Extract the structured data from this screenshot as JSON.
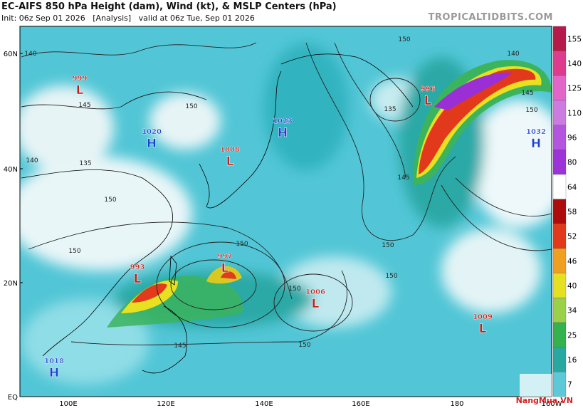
{
  "header": {
    "title": "EC-AIFS 850 hPa Height (dam), Wind (kt), & MSLP Centers (hPa)",
    "subtitle": "Init: 06z Sep 01 2026   [Analysis]   valid at 06z Tue, Sep 01 2026",
    "brand": "TROPICALTIDBITS.COM"
  },
  "map": {
    "lat_labels": [
      "60N",
      "40N",
      "20N",
      "EQ"
    ],
    "lon_labels": [
      "100E",
      "120E",
      "140E",
      "160E",
      "180",
      "160W"
    ],
    "centers": [
      {
        "kind": "L",
        "pressure": "999"
      },
      {
        "kind": "H",
        "pressure": "1020"
      },
      {
        "kind": "L",
        "pressure": "1008"
      },
      {
        "kind": "H",
        "pressure": "1023"
      },
      {
        "kind": "L",
        "pressure": "996"
      },
      {
        "kind": "H",
        "pressure": "1032"
      },
      {
        "kind": "L",
        "pressure": "993"
      },
      {
        "kind": "L",
        "pressure": "997"
      },
      {
        "kind": "L",
        "pressure": "1006"
      },
      {
        "kind": "L",
        "pressure": "1009"
      },
      {
        "kind": "H",
        "pressure": "1018"
      }
    ],
    "contour_labels": [
      "140",
      "145",
      "150",
      "135",
      "145",
      "140",
      "145",
      "150",
      "150",
      "150",
      "150",
      "150",
      "150",
      "145",
      "150",
      "140",
      "135",
      "150",
      "150"
    ]
  },
  "colorbar": {
    "labels": [
      155,
      140,
      125,
      110,
      96,
      80,
      64,
      58,
      52,
      46,
      40,
      34,
      25,
      16,
      7
    ]
  },
  "watermark": "NangMua.VN"
}
